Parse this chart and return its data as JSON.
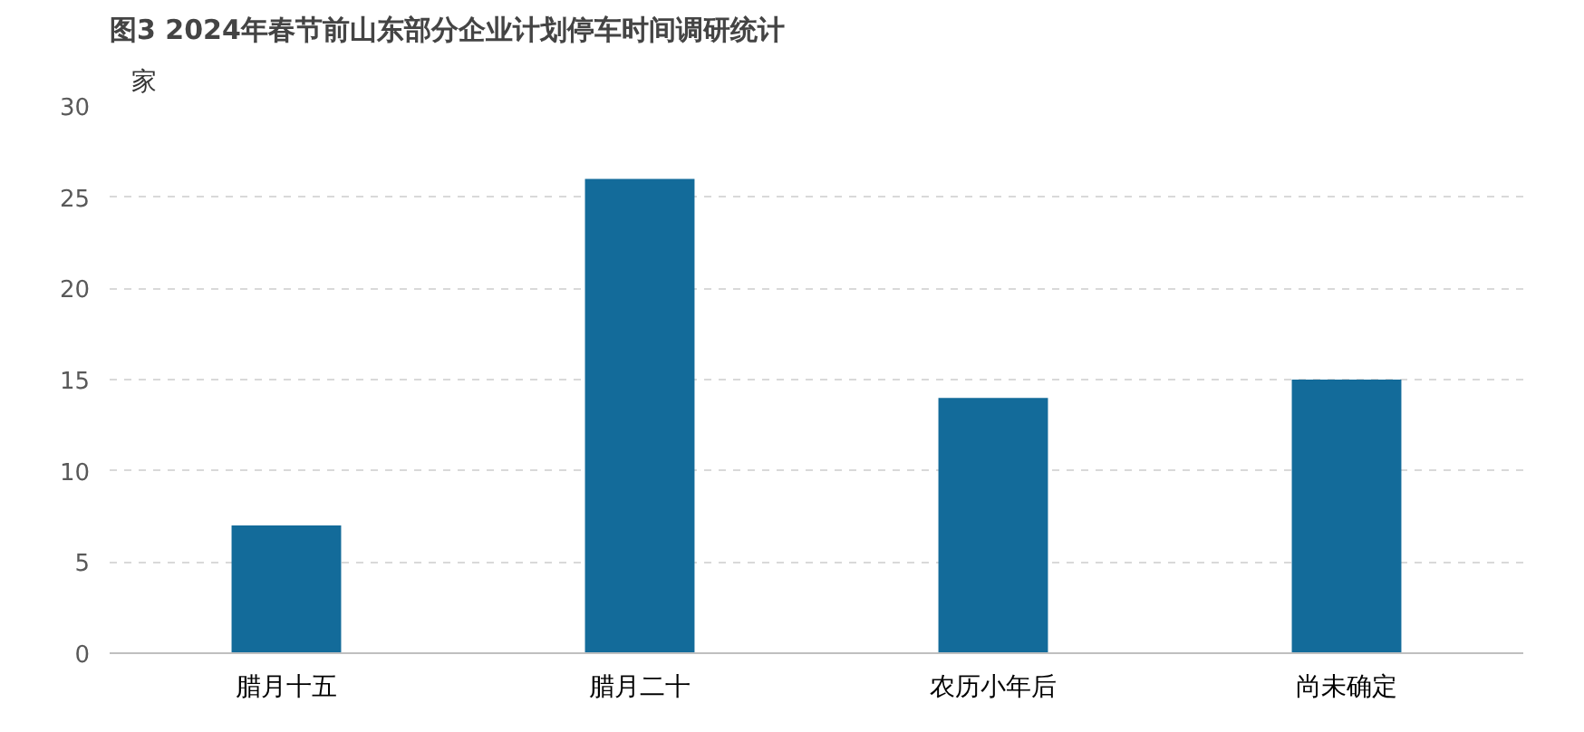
{
  "chart_data": {
    "type": "bar",
    "title": "图3 2024年春节前山东部分企业计划停车时间调研统计",
    "ylabel": "家",
    "categories": [
      "腊月十五",
      "腊月二十",
      "农历小年后",
      "尚未确定"
    ],
    "values": [
      7,
      26,
      14,
      15
    ],
    "color": "#136b9a",
    "ylim": [
      0,
      30
    ],
    "yticks": [
      0,
      5,
      10,
      15,
      20,
      25,
      30
    ],
    "grid": "y"
  }
}
